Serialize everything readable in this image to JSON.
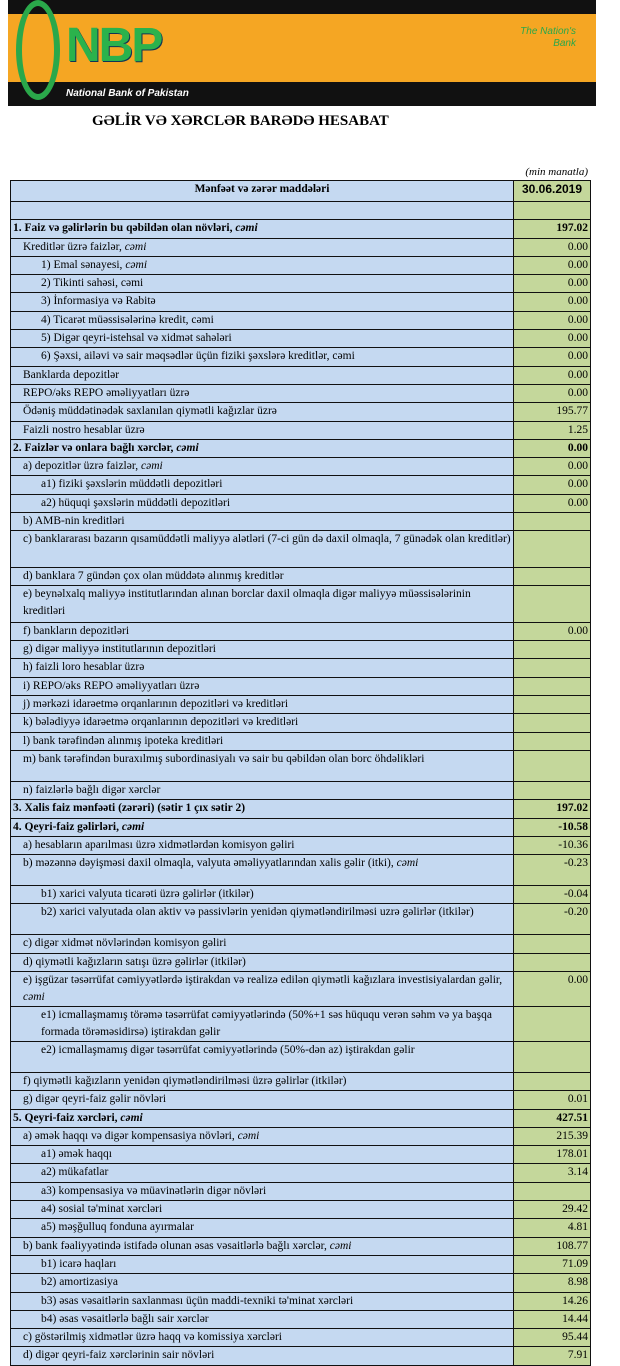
{
  "header": {
    "logo_text": "NBP",
    "logo_subtitle": "National Bank of Pakistan",
    "tagline": "The Nation's Bank",
    "brand_color": "#f5a623",
    "logo_color": "#2aa84a"
  },
  "title": "GƏLİR VƏ XƏRCLƏR BARƏDƏ HESABAT",
  "unit": "(min manatla)",
  "table": {
    "col_label": "Mənfəət və zərər maddələri",
    "col_value": "30.06.2019",
    "rows": [
      {
        "label": "",
        "value": ""
      },
      {
        "label": "1. Faiz və gəlirlərin bu qəbildən olan növləri, ",
        "em": "cəmi",
        "value": "197.02",
        "bold": true,
        "indent": 0
      },
      {
        "label": "Kreditlər üzrə faizlər, ",
        "em": "cəmi",
        "value": "0.00",
        "indent": 1
      },
      {
        "label": "1) Emal sənayesi, ",
        "em": "cəmi",
        "value": "0.00",
        "indent": 2
      },
      {
        "label": "2) Tikinti sahəsi, cəmi",
        "value": "0.00",
        "indent": 2
      },
      {
        "label": "3)  İnformasiya və Rabitə",
        "value": "0.00",
        "indent": 2
      },
      {
        "label": "4) Ticarət müəssisələrinə kredit, cəmi",
        "value": "0.00",
        "indent": 2
      },
      {
        "label": "5) Digər qeyri-istehsal və xidmət sahələri",
        "value": "0.00",
        "indent": 2
      },
      {
        "label": "6) Şəxsi, ailəvi və sair məqsədlər üçün fiziki şəxslərə kreditlər, cəmi",
        "value": "0.00",
        "indent": 2
      },
      {
        "label": "Banklarda depozitlər",
        "value": "0.00",
        "indent": 1
      },
      {
        "label": "REPO/əks REPO əməliyyatları üzrə",
        "value": "0.00",
        "indent": 1
      },
      {
        "label": "Ödəniş müddətinədək saxlanılan qiymətli kağızlar üzrə",
        "value": "195.77",
        "indent": 1
      },
      {
        "label": "Faizli nostro hesablar üzrə",
        "value": "1.25",
        "indent": 1
      },
      {
        "label": "2. Faizlər və onlara bağlı xərclər, ",
        "em": "cəmi",
        "value": "0.00",
        "bold": true,
        "indent": 0
      },
      {
        "label": "a) depozitlər üzrə faizlər, ",
        "em": "cəmi",
        "value": "0.00",
        "indent": 1
      },
      {
        "label": "a1) fiziki şəxslərin müddətli depozitləri",
        "value": "0.00",
        "indent": 2
      },
      {
        "label": "a2) hüquqi şəxslərin müddətli depozitləri",
        "value": "0.00",
        "indent": 2
      },
      {
        "label": "b) AMB-nin kreditləri",
        "value": "",
        "indent": 1
      },
      {
        "label": "c) banklararası bazarın qısamüddətli maliyyə alətləri (7-ci gün də daxil olmaqla, 7 günədək olan kreditlər)",
        "value": "",
        "indent": 1,
        "tall": true
      },
      {
        "label": "d) banklara 7 gündən çox olan müddətə alınmış kreditlər",
        "value": "",
        "indent": 1
      },
      {
        "label": "e) beynəlxalq maliyyə institutlarından alınan borclar daxil olmaqla digər maliyyə müəssisələrinin kreditləri",
        "value": "",
        "indent": 1,
        "tall": true
      },
      {
        "label": "f) bankların depozitləri",
        "value": "0.00",
        "indent": 1
      },
      {
        "label": "g) digər maliyyə institutlarının depozitləri",
        "value": "",
        "indent": 1
      },
      {
        "label": "h) faizli loro hesablar üzrə",
        "value": "",
        "indent": 1
      },
      {
        "label": "i) REPO/əks REPO əməliyyatları üzrə",
        "value": "",
        "indent": 1
      },
      {
        "label": "j) mərkəzi idarəetmə orqanlarının depozitləri və kreditləri",
        "value": "",
        "indent": 1
      },
      {
        "label": "k) bələdiyyə idarəetmə orqanlarının depozitləri və kreditləri",
        "value": "",
        "indent": 1
      },
      {
        "label": "l) bank tərəfindən alınmış ipoteka kreditləri",
        "value": "",
        "indent": 1
      },
      {
        "label": "m) bank tərəfindən buraxılmış subordinasiyalı və sair bu qəbildən olan borc öhdəlikləri",
        "value": "",
        "indent": 1,
        "tall2": true
      },
      {
        "label": "n) faizlərlə bağlı digər xərclər",
        "value": "",
        "indent": 1
      },
      {
        "label": "3. Xalis faiz mənfəəti (zərəri) (sətir 1 çıx sətir 2)",
        "value": "197.02",
        "bold": true,
        "indent": 0
      },
      {
        "label": "4. Qeyri-faiz gəlirləri, ",
        "em": "cəmi",
        "value": "-10.58",
        "bold": true,
        "indent": 0
      },
      {
        "label": "a) hesabların aparılması üzrə xidmətlərdən komisyon gəliri",
        "value": "-10.36",
        "indent": 1
      },
      {
        "label": "b) məzənnə dəyişməsi daxil olmaqla, valyuta əməliyyatlarından xalis gəlir (itki), ",
        "em": "cəmi",
        "value": "-0.23",
        "indent": 1,
        "tall2": true
      },
      {
        "label": "b1) xarici valyuta ticarəti üzrə gəlirlər (itkilər)",
        "value": "-0.04",
        "indent": 2
      },
      {
        "label": "b2) xarici valyutada olan aktiv və passivlərin yenidən qiymətləndirilməsi uzrə gəlirlər (itkilər)",
        "value": "-0.20",
        "indent": 2,
        "tall2": true
      },
      {
        "label": "c) digər xidmət növlərindən komisyon gəliri",
        "value": "",
        "indent": 1
      },
      {
        "label": "d) qiymətli kağızların satışı üzrə gəlirlər (itkilər)",
        "value": "",
        "indent": 1
      },
      {
        "label": "e) işgüzar təsərrüfat cəmiyyətlərdə iştirakdan və realizə edilən qiymətli kağızlara investisiyalardan gəlir, ",
        "em": "cəmi",
        "value": "0.00",
        "indent": 1,
        "tall2": true
      },
      {
        "label": "e1) icmallaşmamış törəmə təsərrüfat cəmiyyətlərində  (50%+1 səs hüququ verən səhm və ya başqa formada törəməsidirsə) iştirakdan gəlir",
        "value": "",
        "indent": 2,
        "tall2": true
      },
      {
        "label": "e2) icmallaşmamış digər təsərrüfat cəmiyyətlərində (50%-dən az) iştirakdan gəlir",
        "value": "",
        "indent": 2,
        "tall2": true
      },
      {
        "label": "f) qiymətli kağızların yenidən qiymətləndirilməsi üzrə gəlirlər (itkilər)",
        "value": "",
        "indent": 1
      },
      {
        "label": "g) digər qeyri-faiz gəlir növləri",
        "value": "0.01",
        "indent": 1
      },
      {
        "label": "5. Qeyri-faiz xərcləri, ",
        "em": "cəmi",
        "value": "427.51",
        "bold": true,
        "indent": 0
      },
      {
        "label": "a) əmək haqqı və digər kompensasiya növləri, ",
        "em": "cəmi",
        "value": "215.39",
        "indent": 1
      },
      {
        "label": "a1) əmək haqqı",
        "value": "178.01",
        "indent": 2
      },
      {
        "label": "a2) mükafatlar",
        "value": "3.14",
        "indent": 2
      },
      {
        "label": "a3) kompensasiya və müavinətlərin digər növləri",
        "value": "",
        "indent": 2
      },
      {
        "label": "a4) sosial tə'minat xərcləri",
        "value": "29.42",
        "indent": 2
      },
      {
        "label": "a5) məşğulluq fonduna ayırmalar",
        "value": "4.81",
        "indent": 2
      },
      {
        "label": "b) bank fəaliyyətində istifadə olunan əsas vəsaitlərlə bağlı xərclər, ",
        "em": "cəmi",
        "value": "108.77",
        "indent": 1
      },
      {
        "label": "b1) icarə haqları",
        "value": "71.09",
        "indent": 2
      },
      {
        "label": "b2) amortizasiya",
        "value": "8.98",
        "indent": 2
      },
      {
        "label": "b3) əsas vəsaitlərin saxlanması üçün maddi-texniki tə'minat xərcləri",
        "value": "14.26",
        "indent": 2
      },
      {
        "label": "b4) əsas vəsaitlərlə bağlı sair xərclər",
        "value": "14.44",
        "indent": 2
      },
      {
        "label": "c) göstərilmiş xidmətlər üzrə haqq və komissiya xərcləri",
        "value": "95.44",
        "indent": 1
      },
      {
        "label": "d) digər qeyri-faiz xərclərinin sair növləri",
        "value": "7.91",
        "indent": 1
      }
    ]
  }
}
